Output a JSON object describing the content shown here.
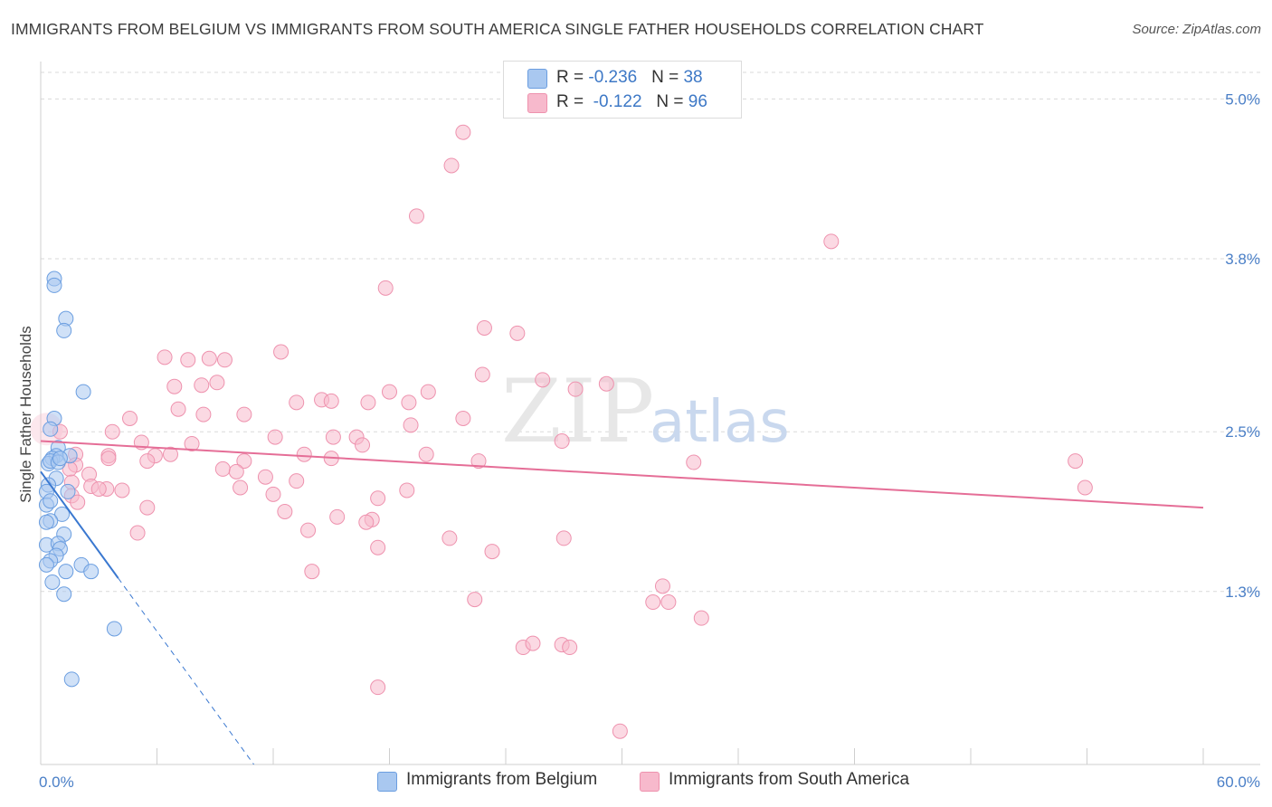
{
  "title": "IMMIGRANTS FROM BELGIUM VS IMMIGRANTS FROM SOUTH AMERICA SINGLE FATHER HOUSEHOLDS CORRELATION CHART",
  "source": "Source: ZipAtlas.com",
  "watermark": {
    "zip": "ZIP",
    "atlas": "atlas"
  },
  "legend_top": {
    "rows": [
      {
        "r_label": "R = ",
        "r_value": "-0.236",
        "n_label": "N = ",
        "n_value": "38"
      },
      {
        "r_label": "R = ",
        "r_value": "-0.122",
        "n_label": "N = ",
        "n_value": "96"
      }
    ]
  },
  "legend_bottom": {
    "items": [
      {
        "label": "Immigrants from Belgium"
      },
      {
        "label": "Immigrants from South America"
      }
    ]
  },
  "colors": {
    "belgium_fill": "#a9c8f0",
    "belgium_stroke": "#6b9ee0",
    "belgium_line": "#3a78d0",
    "sa_fill": "#f7b9cc",
    "sa_stroke": "#ee92ae",
    "sa_line": "#e56e97",
    "axis_text": "#4a7fc7",
    "grid": "#d9d9d9"
  },
  "chart_data": {
    "type": "scatter",
    "title": "IMMIGRANTS FROM BELGIUM VS IMMIGRANTS FROM SOUTH AMERICA SINGLE FATHER HOUSEHOLDS CORRELATION CHART",
    "xlabel": "",
    "ylabel": "Single Father Households",
    "xlim": [
      0,
      60
    ],
    "ylim": [
      0.0,
      5.2
    ],
    "x_tick_labels": [
      "0.0%",
      "60.0%"
    ],
    "y_ticks": [
      1.3,
      2.5,
      3.8,
      5.0
    ],
    "y_tick_labels": [
      "1.3%",
      "2.5%",
      "3.8%",
      "5.0%"
    ],
    "grid": true,
    "legend_position": "top-center",
    "series": [
      {
        "name": "Immigrants from Belgium",
        "r": -0.236,
        "n": 38,
        "trend": {
          "x0": 0.0,
          "y0": 2.2,
          "x1": 4.0,
          "y1": 1.4,
          "dashed_to_x": 11.0,
          "dashed_to_y": 0.0
        },
        "points": [
          [
            0.7,
            3.65
          ],
          [
            0.7,
            3.6
          ],
          [
            1.3,
            3.35
          ],
          [
            1.2,
            3.26
          ],
          [
            2.2,
            2.8
          ],
          [
            0.7,
            2.6
          ],
          [
            0.5,
            2.52
          ],
          [
            0.9,
            2.38
          ],
          [
            0.8,
            2.32
          ],
          [
            0.6,
            2.3
          ],
          [
            1.5,
            2.32
          ],
          [
            0.4,
            2.26
          ],
          [
            0.8,
            2.15
          ],
          [
            0.4,
            2.1
          ],
          [
            0.3,
            2.05
          ],
          [
            1.4,
            2.05
          ],
          [
            0.3,
            1.95
          ],
          [
            0.5,
            1.98
          ],
          [
            1.1,
            1.88
          ],
          [
            0.5,
            1.83
          ],
          [
            0.3,
            1.82
          ],
          [
            1.2,
            1.73
          ],
          [
            0.3,
            1.65
          ],
          [
            0.9,
            1.66
          ],
          [
            1.0,
            1.62
          ],
          [
            0.8,
            1.57
          ],
          [
            0.5,
            1.53
          ],
          [
            2.1,
            1.5
          ],
          [
            0.3,
            1.5
          ],
          [
            2.6,
            1.45
          ],
          [
            1.3,
            1.45
          ],
          [
            0.6,
            1.37
          ],
          [
            1.2,
            1.28
          ],
          [
            3.8,
            1.02
          ],
          [
            1.6,
            0.64
          ],
          [
            0.5,
            2.28
          ],
          [
            0.9,
            2.27
          ],
          [
            1.0,
            2.3
          ]
        ]
      },
      {
        "name": "Immigrants from South America",
        "r": -0.122,
        "n": 96,
        "trend": {
          "x0": 0.0,
          "y0": 2.43,
          "x1": 60.0,
          "y1": 1.93
        },
        "points": [
          [
            21.8,
            4.75
          ],
          [
            21.2,
            4.5
          ],
          [
            19.4,
            4.12
          ],
          [
            40.8,
            3.93
          ],
          [
            17.8,
            3.58
          ],
          [
            22.9,
            3.28
          ],
          [
            24.6,
            3.24
          ],
          [
            12.4,
            3.1
          ],
          [
            6.4,
            3.06
          ],
          [
            7.6,
            3.04
          ],
          [
            8.7,
            3.05
          ],
          [
            9.5,
            3.04
          ],
          [
            22.8,
            2.93
          ],
          [
            25.9,
            2.89
          ],
          [
            29.2,
            2.86
          ],
          [
            6.9,
            2.84
          ],
          [
            8.3,
            2.85
          ],
          [
            9.1,
            2.87
          ],
          [
            18.0,
            2.8
          ],
          [
            20.0,
            2.8
          ],
          [
            27.6,
            2.82
          ],
          [
            14.5,
            2.74
          ],
          [
            15.0,
            2.73
          ],
          [
            16.9,
            2.72
          ],
          [
            13.2,
            2.72
          ],
          [
            19.0,
            2.72
          ],
          [
            7.1,
            2.67
          ],
          [
            8.4,
            2.63
          ],
          [
            10.5,
            2.63
          ],
          [
            21.8,
            2.6
          ],
          [
            4.6,
            2.6
          ],
          [
            19.1,
            2.55
          ],
          [
            3.7,
            2.5
          ],
          [
            1.0,
            2.5
          ],
          [
            12.1,
            2.46
          ],
          [
            15.1,
            2.46
          ],
          [
            16.3,
            2.46
          ],
          [
            26.9,
            2.43
          ],
          [
            5.2,
            2.42
          ],
          [
            7.8,
            2.41
          ],
          [
            16.6,
            2.4
          ],
          [
            1.8,
            2.33
          ],
          [
            3.5,
            2.32
          ],
          [
            5.9,
            2.32
          ],
          [
            6.7,
            2.33
          ],
          [
            13.6,
            2.33
          ],
          [
            19.9,
            2.33
          ],
          [
            15.0,
            2.3
          ],
          [
            3.5,
            2.3
          ],
          [
            5.5,
            2.28
          ],
          [
            10.5,
            2.28
          ],
          [
            22.6,
            2.28
          ],
          [
            33.7,
            2.27
          ],
          [
            53.4,
            2.28
          ],
          [
            9.4,
            2.22
          ],
          [
            1.8,
            2.25
          ],
          [
            1.5,
            2.22
          ],
          [
            10.1,
            2.2
          ],
          [
            11.6,
            2.16
          ],
          [
            2.5,
            2.18
          ],
          [
            13.2,
            2.13
          ],
          [
            1.6,
            2.12
          ],
          [
            2.6,
            2.09
          ],
          [
            3.4,
            2.07
          ],
          [
            4.2,
            2.06
          ],
          [
            3.0,
            2.07
          ],
          [
            10.3,
            2.08
          ],
          [
            1.6,
            2.02
          ],
          [
            12.0,
            2.03
          ],
          [
            17.4,
            2.0
          ],
          [
            18.9,
            2.06
          ],
          [
            53.9,
            2.08
          ],
          [
            1.9,
            1.97
          ],
          [
            5.5,
            1.93
          ],
          [
            12.6,
            1.9
          ],
          [
            15.3,
            1.86
          ],
          [
            17.1,
            1.84
          ],
          [
            16.8,
            1.82
          ],
          [
            13.8,
            1.76
          ],
          [
            5.0,
            1.74
          ],
          [
            21.1,
            1.7
          ],
          [
            27.0,
            1.7
          ],
          [
            17.4,
            1.63
          ],
          [
            23.3,
            1.6
          ],
          [
            14.0,
            1.45
          ],
          [
            32.1,
            1.34
          ],
          [
            22.4,
            1.24
          ],
          [
            31.6,
            1.22
          ],
          [
            32.4,
            1.22
          ],
          [
            34.1,
            1.1
          ],
          [
            24.9,
            0.88
          ],
          [
            25.4,
            0.91
          ],
          [
            26.9,
            0.9
          ],
          [
            27.3,
            0.88
          ],
          [
            17.4,
            0.58
          ],
          [
            29.9,
            0.25
          ]
        ]
      }
    ]
  }
}
